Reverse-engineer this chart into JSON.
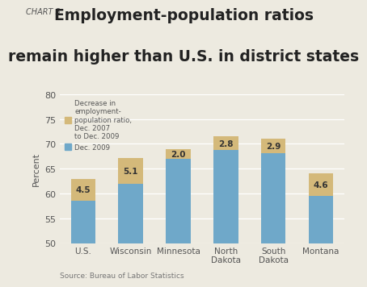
{
  "categories": [
    "U.S.",
    "Wisconsin",
    "Minnesota",
    "North\nDakota",
    "South\nDakota",
    "Montana"
  ],
  "dec2009_values": [
    58.5,
    62.0,
    67.0,
    68.7,
    68.1,
    59.5
  ],
  "decrease_values": [
    4.5,
    5.1,
    2.0,
    2.8,
    2.9,
    4.6
  ],
  "decrease_labels": [
    "4.5",
    "5.1",
    "2.0",
    "2.8",
    "2.9",
    "4.6"
  ],
  "bar_color_blue": "#6fa8c9",
  "bar_color_tan": "#d4b97a",
  "background_color": "#edeae0",
  "ylim": [
    50,
    80
  ],
  "yticks": [
    50,
    55,
    60,
    65,
    70,
    75,
    80
  ],
  "ylabel": "Percent",
  "chart_label": "CHART 3",
  "title_line1": "Employment-population ratios",
  "title_line2": "remain higher than U.S. in district states",
  "legend_label1": "Decrease in\nemployment-\npopulation ratio,\nDec. 2007\nto Dec. 2009",
  "legend_label2": "Dec. 2009",
  "source_text": "Source: Bureau of Labor Statistics"
}
